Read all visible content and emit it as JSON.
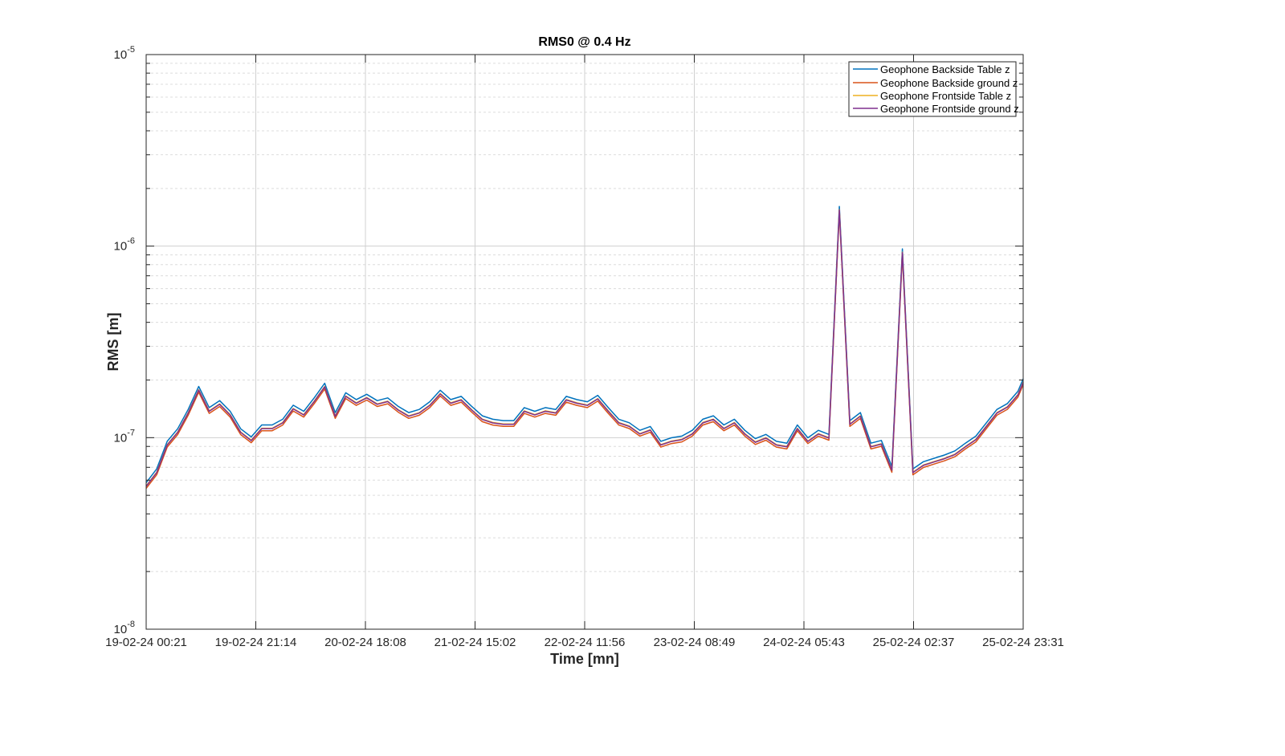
{
  "chart_data": {
    "type": "line",
    "title": "RMS0 @ 0.4 Hz",
    "xlabel": "Time [mn]",
    "ylabel": "RMS [m]",
    "yscale": "log",
    "ylim": [
      1e-08,
      1e-05
    ],
    "y_ticks": [
      {
        "value": 1e-08,
        "base": "10",
        "exp": "-8"
      },
      {
        "value": 1e-07,
        "base": "10",
        "exp": "-7"
      },
      {
        "value": 1e-06,
        "base": "10",
        "exp": "-6"
      },
      {
        "value": 1e-05,
        "base": "10",
        "exp": "-5"
      }
    ],
    "x_tick_labels": [
      "19-02-24 00:21",
      "19-02-24 21:14",
      "20-02-24 18:08",
      "21-02-24 15:02",
      "22-02-24 11:56",
      "23-02-24 08:49",
      "24-02-24 05:43",
      "25-02-24 02:37",
      "25-02-24 23:31"
    ],
    "x_range": [
      "19-02-24 00:21",
      "25-02-24 23:31"
    ],
    "grid": true,
    "minor_grid": true,
    "legend_position": "top-right",
    "series": [
      {
        "name": "Geophone Backside Table z",
        "color": "#0072BD",
        "y_offset_factor": 1.04
      },
      {
        "name": "Geophone Backside ground z",
        "color": "#D95319",
        "y_offset_factor": 0.97
      },
      {
        "name": "Geophone Frontside Table z",
        "color": "#EDB120",
        "y_offset_factor": 1.0
      },
      {
        "name": "Geophone Frontside ground z",
        "color": "#7E2F8E",
        "y_offset_factor": 0.995
      }
    ],
    "x_hours": [
      0,
      2,
      4,
      6,
      8,
      10,
      12,
      14,
      16,
      18,
      20,
      22,
      24,
      26,
      28,
      30,
      32,
      34,
      36,
      38,
      40,
      42,
      44,
      46,
      48,
      50,
      52,
      54,
      56,
      58,
      60,
      62,
      64,
      66,
      68,
      70,
      72,
      74,
      76,
      78,
      80,
      82,
      84,
      86,
      88,
      90,
      92,
      94,
      96,
      98,
      100,
      102,
      104,
      106,
      108,
      110,
      112,
      114,
      116,
      118,
      120,
      122,
      124,
      126,
      128,
      130,
      132,
      134,
      136,
      138,
      140,
      142,
      144,
      146,
      148,
      150,
      152,
      154,
      156,
      158,
      160,
      162,
      164,
      166,
      167
    ],
    "y_common": [
      5.6e-08,
      6.6e-08,
      9.2e-08,
      1.07e-07,
      1.35e-07,
      1.78e-07,
      1.38e-07,
      1.5e-07,
      1.32e-07,
      1.07e-07,
      9.7e-08,
      1.12e-07,
      1.12e-07,
      1.2e-07,
      1.42e-07,
      1.32e-07,
      1.55e-07,
      1.85e-07,
      1.3e-07,
      1.65e-07,
      1.52e-07,
      1.62e-07,
      1.5e-07,
      1.55e-07,
      1.4e-07,
      1.3e-07,
      1.35e-07,
      1.48e-07,
      1.7e-07,
      1.52e-07,
      1.58e-07,
      1.4e-07,
      1.25e-07,
      1.2e-07,
      1.18e-07,
      1.18e-07,
      1.38e-07,
      1.32e-07,
      1.38e-07,
      1.35e-07,
      1.58e-07,
      1.52e-07,
      1.48e-07,
      1.6e-07,
      1.38e-07,
      1.2e-07,
      1.15e-07,
      1.05e-07,
      1.1e-07,
      9.2e-08,
      9.6e-08,
      9.8e-08,
      1.05e-07,
      1.2e-07,
      1.25e-07,
      1.12e-07,
      1.2e-07,
      1.05e-07,
      9.5e-08,
      1e-07,
      9.2e-08,
      9e-08,
      1.12e-07,
      9.6e-08,
      1.05e-07,
      1e-07,
      1.55e-06,
      1.18e-07,
      1.3e-07,
      9e-08,
      9.3e-08,
      6.8e-08,
      9.3e-07,
      6.6e-08,
      7.2e-08,
      7.5e-08,
      7.8e-08,
      8.2e-08,
      9e-08,
      9.8e-08,
      1.15e-07,
      1.35e-07,
      1.45e-07,
      1.68e-07,
      1.95e-07
    ]
  }
}
